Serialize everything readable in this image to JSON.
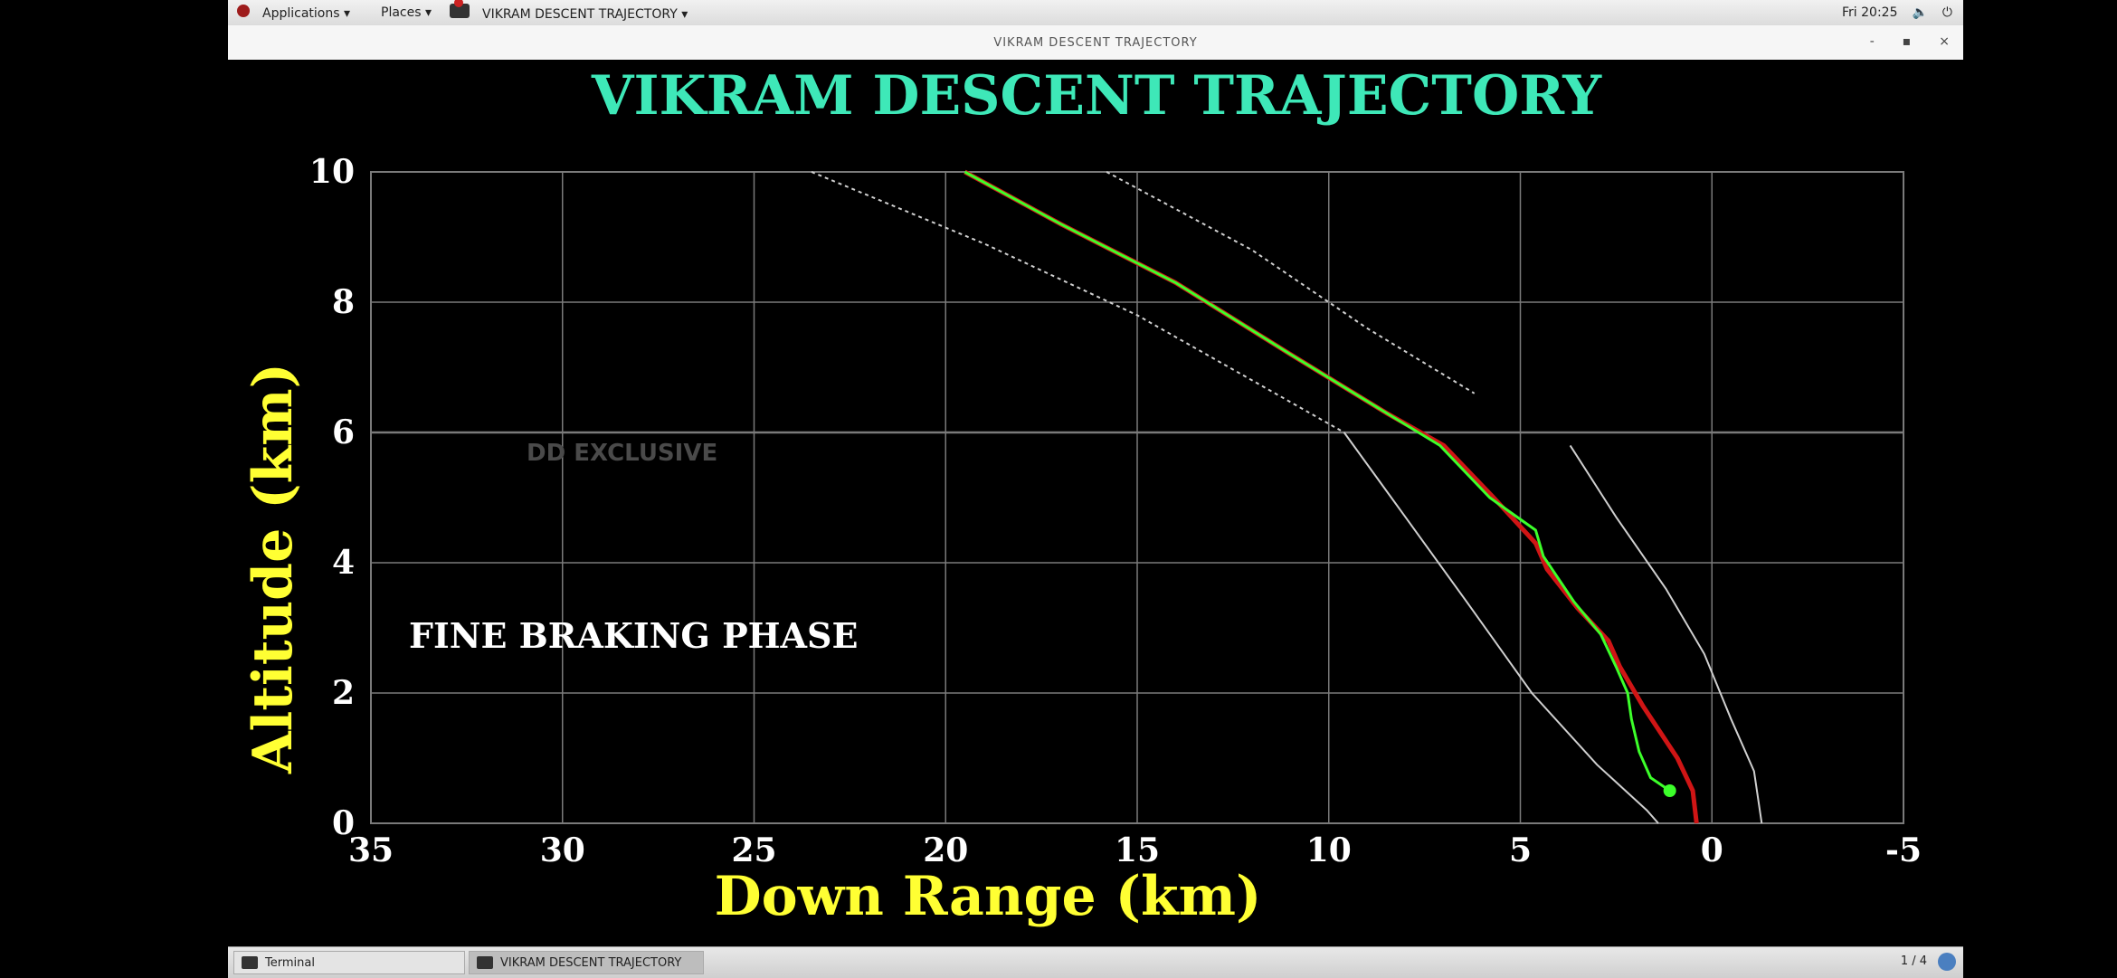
{
  "topbar": {
    "applications": "Applications ▾",
    "places": "Places ▾",
    "active_app": "VIKRAM DESCENT TRAJECTORY ▾",
    "clock": "Fri 20:25",
    "volume_icon": "volume-icon",
    "power_icon": "power-icon"
  },
  "window": {
    "title": "VIKRAM DESCENT TRAJECTORY",
    "minimize": "-",
    "maximize": "▪",
    "close": "×"
  },
  "taskbar": {
    "task1": "Terminal",
    "task2": "VIKRAM DESCENT TRAJECTORY",
    "pager": "1 / 4"
  },
  "colors": {
    "title": "#3ee8b8",
    "axis_label": "#ffff33",
    "tick": "#ffffff",
    "grid": "#7a7a7a",
    "red_line": "#d01515",
    "green_line": "#3cff2a",
    "bound_line": "#d0d0d0"
  },
  "chart_data": {
    "type": "line",
    "title": "VIKRAM DESCENT TRAJECTORY",
    "xlabel": "Down Range (km)",
    "ylabel": "Altitude (km)",
    "xlim": [
      35,
      -5
    ],
    "ylim": [
      0,
      10
    ],
    "x_ticks": [
      35,
      30,
      25,
      20,
      15,
      10,
      5,
      0,
      -5
    ],
    "y_ticks": [
      0,
      2,
      4,
      6,
      8,
      10
    ],
    "grid": true,
    "annotations": {
      "phase": "FINE BRAKING PHASE",
      "watermark": "DD EXCLUSIVE"
    },
    "series": [
      {
        "role": "planned-trajectory",
        "style": "solid",
        "points": [
          [
            19.5,
            10
          ],
          [
            17,
            9.2
          ],
          [
            14,
            8.3
          ],
          [
            11,
            7.2
          ],
          [
            8.5,
            6.3
          ],
          [
            7,
            5.8
          ],
          [
            5.7,
            5.0
          ],
          [
            4.6,
            4.3
          ],
          [
            4.3,
            3.9
          ],
          [
            3.5,
            3.3
          ],
          [
            2.7,
            2.8
          ],
          [
            2.4,
            2.4
          ],
          [
            1.8,
            1.8
          ],
          [
            0.9,
            1.0
          ],
          [
            0.5,
            0.5
          ],
          [
            0.4,
            0
          ]
        ]
      },
      {
        "role": "actual-trajectory",
        "style": "solid",
        "points": [
          [
            19.5,
            10
          ],
          [
            17,
            9.2
          ],
          [
            14,
            8.3
          ],
          [
            11,
            7.2
          ],
          [
            8.5,
            6.3
          ],
          [
            7.1,
            5.8
          ],
          [
            5.8,
            5.0
          ],
          [
            4.6,
            4.5
          ],
          [
            4.4,
            4.1
          ],
          [
            3.6,
            3.4
          ],
          [
            2.9,
            2.9
          ],
          [
            2.5,
            2.4
          ],
          [
            2.2,
            2.0
          ],
          [
            2.1,
            1.6
          ],
          [
            1.9,
            1.1
          ],
          [
            1.6,
            0.7
          ],
          [
            1.1,
            0.5
          ]
        ]
      },
      {
        "role": "left-boundary",
        "style": "dotted-then-solid",
        "dotted_until_y": 6,
        "points": [
          [
            23.5,
            10
          ],
          [
            19,
            8.9
          ],
          [
            15,
            7.8
          ],
          [
            12,
            6.8
          ],
          [
            9.6,
            6.0
          ],
          [
            8,
            4.7
          ],
          [
            6.4,
            3.4
          ],
          [
            4.7,
            2.0
          ],
          [
            3,
            0.9
          ],
          [
            1.7,
            0.2
          ],
          [
            1.4,
            0
          ]
        ]
      },
      {
        "role": "right-boundary",
        "style": "dotted-then-solid",
        "dotted_until_y": 6,
        "points": [
          [
            15.8,
            10
          ],
          [
            12,
            8.8
          ],
          [
            9,
            7.6
          ],
          [
            6.2,
            6.6
          ],
          [
            3.7,
            5.8
          ],
          [
            2.5,
            4.7
          ],
          [
            1.2,
            3.6
          ],
          [
            0.2,
            2.6
          ],
          [
            -0.5,
            1.6
          ],
          [
            -1.1,
            0.8
          ],
          [
            -1.3,
            0
          ]
        ]
      }
    ],
    "marker": {
      "role": "current-position",
      "x": 1.1,
      "y": 0.5
    }
  }
}
